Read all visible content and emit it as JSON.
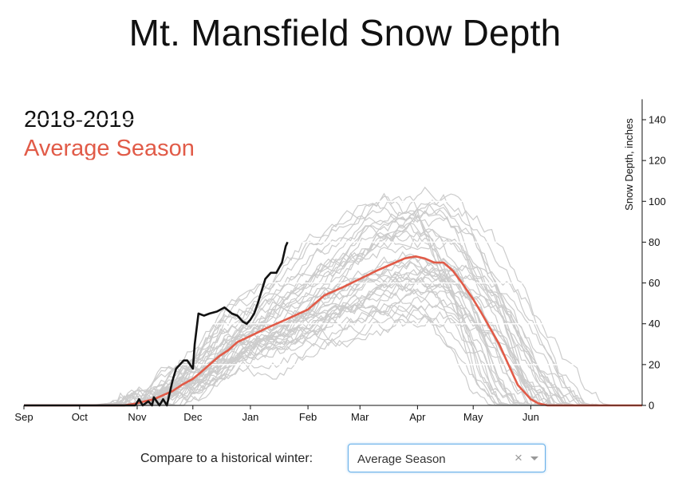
{
  "title": "Mt. Mansfield Snow Depth",
  "legend": {
    "current": "2018-2019",
    "compare": "Average Season"
  },
  "controls": {
    "label": "Compare to a historical winter:",
    "selected": "Average Season",
    "clear_symbol": "×"
  },
  "colors": {
    "current": "#111111",
    "compare": "#e15b48",
    "historical": "#cccccc",
    "grid": "#ffffff"
  },
  "chart_data": {
    "type": "line",
    "title": "Mt. Mansfield Snow Depth",
    "xlabel": "",
    "ylabel": "Snow Depth, inches",
    "y_axis_position": "right",
    "ylim": [
      0,
      150
    ],
    "yticks": [
      0,
      20,
      40,
      60,
      80,
      100,
      120,
      140
    ],
    "x_ticks": [
      "Sep",
      "Oct",
      "Nov",
      "Dec",
      "Jan",
      "Feb",
      "Mar",
      "Apr",
      "May",
      "Jun"
    ],
    "xlim": [
      "Sep 1",
      "Jul 31"
    ],
    "gridlines": "horizontal",
    "series": [
      {
        "name": "2018-2019",
        "role": "current",
        "x": [
          "Sep 1",
          "Sep 15",
          "Oct 1",
          "Oct 15",
          "Oct 31",
          "Nov 2",
          "Nov 4",
          "Nov 7",
          "Nov 9",
          "Nov 10",
          "Nov 13",
          "Nov 15",
          "Nov 17",
          "Nov 19",
          "Nov 20",
          "Nov 22",
          "Nov 24",
          "Nov 26",
          "Nov 28",
          "Dec 1",
          "Dec 2",
          "Dec 4",
          "Dec 7",
          "Dec 10",
          "Dec 14",
          "Dec 18",
          "Dec 22",
          "Dec 25",
          "Dec 28",
          "Dec 30",
          "Jan 1",
          "Jan 3",
          "Jan 5",
          "Jan 7",
          "Jan 9",
          "Jan 12",
          "Jan 15",
          "Jan 18",
          "Jan 20",
          "Jan 21"
        ],
        "y": [
          0,
          0,
          0,
          0,
          0,
          3,
          0,
          2,
          0,
          4,
          0,
          3,
          0,
          8,
          12,
          18,
          20,
          22,
          22,
          18,
          30,
          45,
          44,
          45,
          46,
          48,
          45,
          44,
          41,
          40,
          42,
          45,
          50,
          56,
          62,
          65,
          65,
          70,
          78,
          80
        ]
      },
      {
        "name": "Average Season",
        "role": "compare",
        "x": [
          "Sep 1",
          "Oct 1",
          "Oct 25",
          "Nov 1",
          "Nov 5",
          "Nov 10",
          "Nov 15",
          "Nov 20",
          "Nov 25",
          "Dec 1",
          "Dec 5",
          "Dec 10",
          "Dec 15",
          "Dec 20",
          "Dec 25",
          "Jan 1",
          "Jan 10",
          "Jan 20",
          "Feb 1",
          "Feb 10",
          "Feb 20",
          "Mar 1",
          "Mar 10",
          "Mar 20",
          "Mar 25",
          "Mar 31",
          "Apr 5",
          "Apr 10",
          "Apr 15",
          "Apr 20",
          "Apr 25",
          "May 1",
          "May 5",
          "May 10",
          "May 15",
          "May 20",
          "May 25",
          "Jun 1",
          "Jun 5",
          "Jun 10",
          "Jul 31"
        ],
        "y": [
          0,
          0,
          0,
          1,
          2,
          3,
          5,
          7,
          10,
          13,
          16,
          20,
          24,
          27,
          31,
          34,
          38,
          42,
          47,
          54,
          58,
          62,
          66,
          70,
          72,
          73,
          72,
          70,
          70,
          66,
          60,
          52,
          46,
          38,
          30,
          20,
          10,
          3,
          1,
          0,
          0
        ]
      }
    ],
    "historical_series_count": 40
  }
}
